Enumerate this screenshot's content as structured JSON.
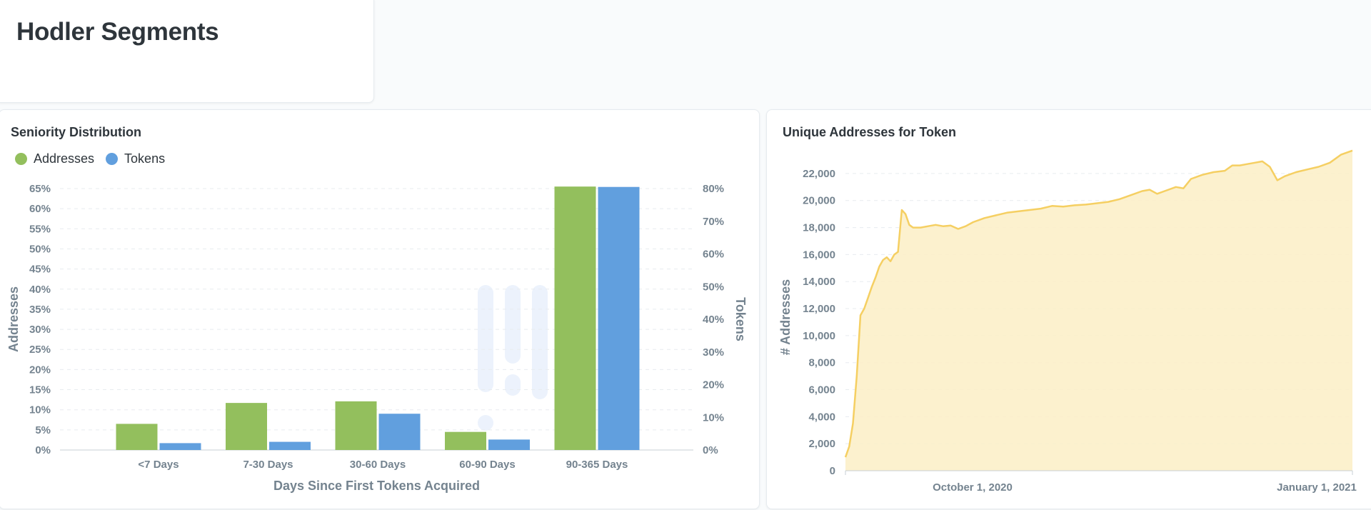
{
  "header": {
    "title": "Hodler Segments"
  },
  "colors": {
    "addresses": "#93bf5d",
    "tokens": "#619fde",
    "area_fill": "#fcefc6",
    "area_line": "#f5cf62",
    "grid": "#e8ecef"
  },
  "chart_data": [
    {
      "type": "bar",
      "title": "Seniority Distribution",
      "categories": [
        "<7 Days",
        "7-30 Days",
        "30-60 Days",
        "60-90 Days",
        "90-365 Days"
      ],
      "series": [
        {
          "name": "Addresses",
          "axis": "left",
          "values": [
            6.5,
            11.7,
            12.1,
            4.5,
            65.5
          ]
        },
        {
          "name": "Tokens",
          "axis": "right",
          "values": [
            2.1,
            2.5,
            11.1,
            3.2,
            80.5
          ]
        }
      ],
      "xlabel": "Days Since First Tokens Acquired",
      "ylabel": "Addresses",
      "y2label": "Tokens",
      "ylim": [
        0,
        65
      ],
      "y2lim": [
        0,
        80
      ],
      "yticks": [
        "0%",
        "5%",
        "10%",
        "15%",
        "20%",
        "25%",
        "30%",
        "35%",
        "40%",
        "45%",
        "50%",
        "55%",
        "60%",
        "65%"
      ],
      "y2ticks": [
        "0%",
        "10%",
        "20%",
        "30%",
        "40%",
        "50%",
        "60%",
        "70%",
        "80%"
      ],
      "legend": "top-left",
      "grid": true
    },
    {
      "type": "area",
      "title": "Unique Addresses for Token",
      "ylabel": "# Addresses",
      "ylim": [
        0,
        23000
      ],
      "yticks": [
        "0",
        "2,000",
        "4,000",
        "6,000",
        "8,000",
        "10,000",
        "12,000",
        "14,000",
        "16,000",
        "18,000",
        "20,000",
        "22,000"
      ],
      "xticks": [
        "October 1, 2020",
        "January 1, 2021"
      ],
      "xlim": [
        "2020-08-24",
        "2021-01-06"
      ],
      "grid": true,
      "points": [
        [
          "2020-08-24",
          1000
        ],
        [
          "2020-08-25",
          1800
        ],
        [
          "2020-08-26",
          3500
        ],
        [
          "2020-08-27",
          7000
        ],
        [
          "2020-08-28",
          11500
        ],
        [
          "2020-08-29",
          12000
        ],
        [
          "2020-08-30",
          12800
        ],
        [
          "2020-08-31",
          13600
        ],
        [
          "2020-09-01",
          14300
        ],
        [
          "2020-09-02",
          15100
        ],
        [
          "2020-09-03",
          15600
        ],
        [
          "2020-09-04",
          15800
        ],
        [
          "2020-09-05",
          15500
        ],
        [
          "2020-09-06",
          16000
        ],
        [
          "2020-09-07",
          16200
        ],
        [
          "2020-09-08",
          19300
        ],
        [
          "2020-09-09",
          19000
        ],
        [
          "2020-09-10",
          18200
        ],
        [
          "2020-09-11",
          18000
        ],
        [
          "2020-09-13",
          18000
        ],
        [
          "2020-09-15",
          18100
        ],
        [
          "2020-09-17",
          18200
        ],
        [
          "2020-09-19",
          18100
        ],
        [
          "2020-09-21",
          18150
        ],
        [
          "2020-09-23",
          17900
        ],
        [
          "2020-09-25",
          18100
        ],
        [
          "2020-09-27",
          18400
        ],
        [
          "2020-09-30",
          18700
        ],
        [
          "2020-10-03",
          18900
        ],
        [
          "2020-10-06",
          19100
        ],
        [
          "2020-10-09",
          19200
        ],
        [
          "2020-10-12",
          19300
        ],
        [
          "2020-10-15",
          19400
        ],
        [
          "2020-10-18",
          19600
        ],
        [
          "2020-10-21",
          19550
        ],
        [
          "2020-10-24",
          19650
        ],
        [
          "2020-10-27",
          19700
        ],
        [
          "2020-10-30",
          19800
        ],
        [
          "2020-11-02",
          19900
        ],
        [
          "2020-11-05",
          20100
        ],
        [
          "2020-11-08",
          20400
        ],
        [
          "2020-11-11",
          20700
        ],
        [
          "2020-11-13",
          20800
        ],
        [
          "2020-11-15",
          20500
        ],
        [
          "2020-11-17",
          20700
        ],
        [
          "2020-11-20",
          21000
        ],
        [
          "2020-11-22",
          20900
        ],
        [
          "2020-11-24",
          21600
        ],
        [
          "2020-11-27",
          21900
        ],
        [
          "2020-11-30",
          22100
        ],
        [
          "2020-12-03",
          22200
        ],
        [
          "2020-12-05",
          22600
        ],
        [
          "2020-12-07",
          22600
        ],
        [
          "2020-12-09",
          22700
        ],
        [
          "2020-12-11",
          22800
        ],
        [
          "2020-12-13",
          22900
        ],
        [
          "2020-12-15",
          22500
        ],
        [
          "2020-12-17",
          21500
        ],
        [
          "2020-12-19",
          21800
        ],
        [
          "2020-12-22",
          22100
        ],
        [
          "2020-12-25",
          22300
        ],
        [
          "2020-12-28",
          22500
        ],
        [
          "2020-12-31",
          22800
        ],
        [
          "2021-01-03",
          23400
        ],
        [
          "2021-01-06",
          23700
        ]
      ]
    }
  ]
}
